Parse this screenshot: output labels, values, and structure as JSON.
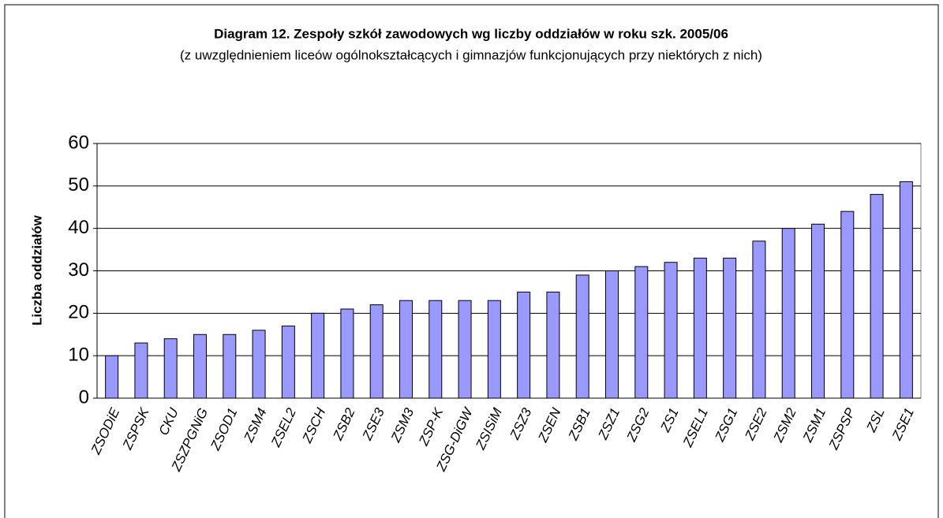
{
  "chart_data": {
    "type": "bar",
    "title": "Diagram 12. Zespoły szkół zawodowych wg liczby oddziałów w roku szk. 2005/06",
    "subtitle": "(z uwzględnieniem liceów ogólnokształcących i gimnazjów funkcjonujących przy niektórych z nich)",
    "y_label": "Liczba oddziałów",
    "categories": [
      "ZSODiE",
      "ZSPSK",
      "CKU",
      "ZSZPGNiG",
      "ZSOD1",
      "ZSM4",
      "ZSEL2",
      "ZSCH",
      "ZSB2",
      "ZSE3",
      "ZSM3",
      "ZSP-K",
      "ZSG-DiGW",
      "ZSISiM",
      "ZSZ3",
      "ZSEN",
      "ZSB1",
      "ZSZ1",
      "ZSG2",
      "ZS1",
      "ZSEL1",
      "ZSG1",
      "ZSE2",
      "ZSM2",
      "ZSM1",
      "ZSPSP",
      "ZSL",
      "ZSE1"
    ],
    "values": [
      10,
      13,
      14,
      15,
      15,
      16,
      17,
      20,
      21,
      22,
      23,
      23,
      23,
      23,
      25,
      25,
      29,
      30,
      31,
      32,
      33,
      33,
      37,
      40,
      41,
      44,
      48,
      51
    ],
    "color": "#9999ff",
    "ylim": [
      0,
      60
    ],
    "yticks": [
      0,
      10,
      20,
      30,
      40,
      50,
      60
    ],
    "grid": true
  }
}
